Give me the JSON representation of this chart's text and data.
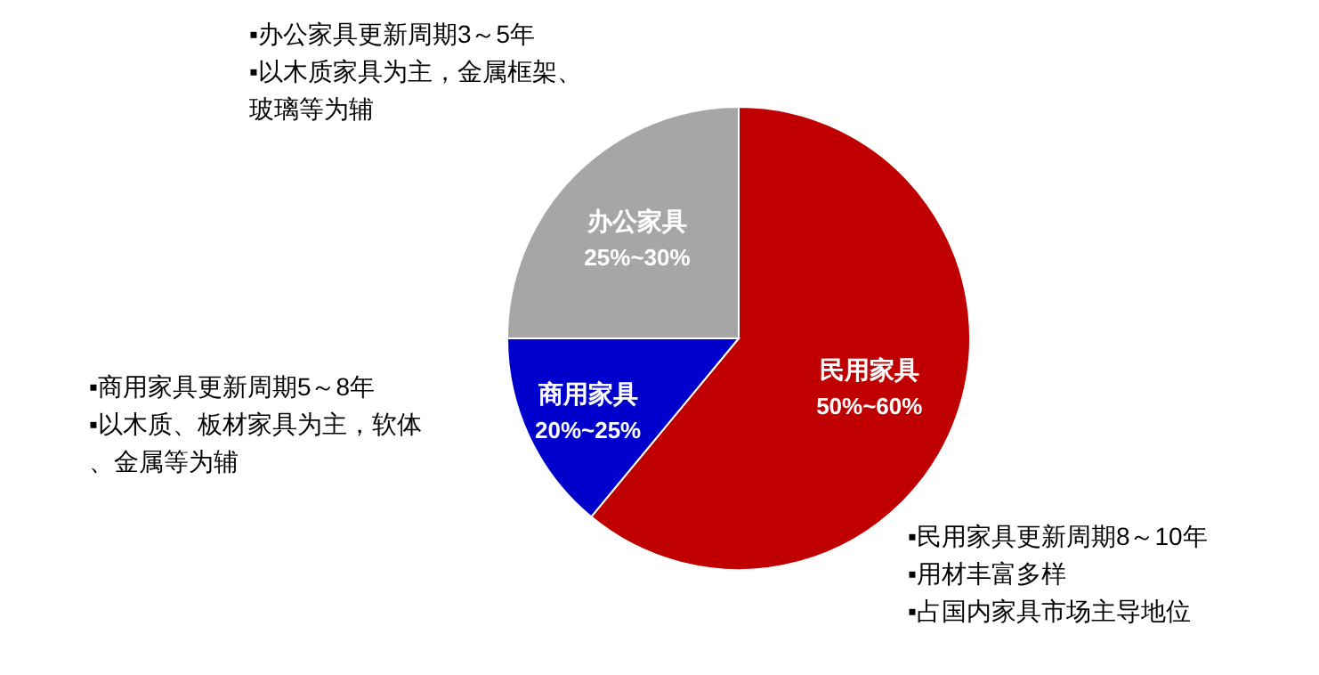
{
  "chart_data": {
    "type": "pie",
    "categories": [
      "民用家具",
      "商用家具",
      "办公家具"
    ],
    "values": [
      61,
      14,
      25
    ],
    "colors": [
      "#c00000",
      "#0000cc",
      "#a6a6a6"
    ],
    "annotations": [
      "50%~60%",
      "20%~25%",
      "25%~30%",
      "▪办公家具更新周期3～5年",
      "▪以木质家具为主，金属框架、",
      "玻璃等为辅",
      "▪商用家具更新周期5～8年",
      "▪以木质、板材家具为主，软体",
      "、金属等为辅",
      "▪民用家具更新周期8～10年",
      "▪用材丰富多样",
      "▪占国内家具市场主导地位"
    ]
  }
}
